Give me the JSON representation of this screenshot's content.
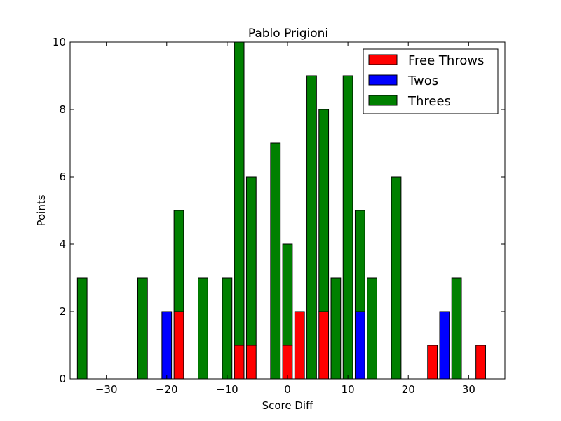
{
  "chart_data": {
    "type": "bar",
    "title": "Pablo Prigioni",
    "xlabel": "Score Diff",
    "ylabel": "Points",
    "xlim": [
      -36,
      36
    ],
    "ylim": [
      0,
      10
    ],
    "bar_width": 1.6,
    "xticks": [
      -30,
      -20,
      -10,
      0,
      10,
      20,
      30
    ],
    "xtick_labels": [
      "−30",
      "−20",
      "−10",
      "0",
      "10",
      "20",
      "30"
    ],
    "yticks": [
      0,
      2,
      4,
      6,
      8,
      10
    ],
    "ytick_labels": [
      "0",
      "2",
      "4",
      "6",
      "8",
      "10"
    ],
    "stacked": true,
    "x": [
      -34,
      -32,
      -30,
      -28,
      -26,
      -24,
      -22,
      -20,
      -18,
      -16,
      -14,
      -12,
      -10,
      -8,
      -6,
      -4,
      -2,
      0,
      2,
      4,
      6,
      8,
      10,
      12,
      14,
      16,
      18,
      20,
      22,
      24,
      26,
      28,
      30,
      32,
      34
    ],
    "series": [
      {
        "name": "Free Throws",
        "color": "#ff0000",
        "values": [
          0,
          0,
          0,
          0,
          0,
          0,
          0,
          0,
          2,
          0,
          0,
          0,
          0,
          1,
          1,
          0,
          0,
          1,
          2,
          0,
          2,
          0,
          0,
          0,
          0,
          0,
          0,
          0,
          0,
          1,
          0,
          0,
          0,
          1,
          0
        ]
      },
      {
        "name": "Twos",
        "color": "#0000ff",
        "values": [
          0,
          0,
          0,
          0,
          0,
          0,
          0,
          2,
          0,
          0,
          0,
          0,
          0,
          0,
          0,
          0,
          0,
          0,
          0,
          0,
          0,
          0,
          0,
          2,
          0,
          0,
          0,
          0,
          0,
          0,
          2,
          0,
          0,
          0,
          0
        ]
      },
      {
        "name": "Threes",
        "color": "#008000",
        "values": [
          3,
          0,
          0,
          0,
          0,
          3,
          0,
          0,
          3,
          0,
          3,
          0,
          3,
          9,
          5,
          0,
          7,
          3,
          0,
          9,
          6,
          3,
          9,
          3,
          3,
          0,
          6,
          0,
          0,
          0,
          0,
          3,
          0,
          0,
          0
        ]
      }
    ],
    "legend": {
      "position": "top-right",
      "entries": [
        "Free Throws",
        "Twos",
        "Threes"
      ]
    },
    "grid": false
  }
}
